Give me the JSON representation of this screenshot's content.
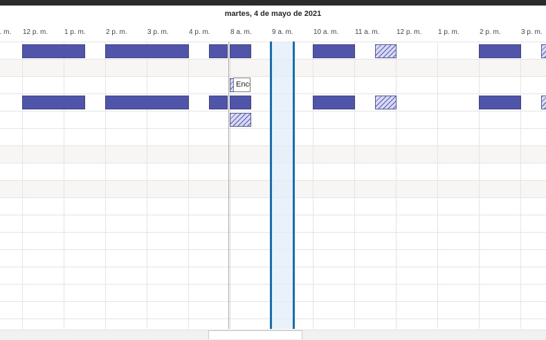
{
  "window": {
    "topbar_color": "#2b2b2b"
  },
  "header": {
    "date_title": "martes, 4 de mayo de 2021"
  },
  "hours": [
    {
      "label": "a. m."
    },
    {
      "label": "12 p. m."
    },
    {
      "label": "1 p. m."
    },
    {
      "label": "2 p. m."
    },
    {
      "label": "3 p. m."
    },
    {
      "label": "4 p. m."
    },
    {
      "label": "8 a. m."
    },
    {
      "label": "9 a. m."
    },
    {
      "label": "10 a. m."
    },
    {
      "label": "11 a. m."
    },
    {
      "label": "12 p. m."
    },
    {
      "label": "1 p. m."
    },
    {
      "label": "2 p. m."
    },
    {
      "label": "3 p. m."
    }
  ],
  "tooltip": {
    "text": "Enco"
  },
  "colors": {
    "busy": "#5055a9",
    "selection_border": "#106ebe",
    "alt_row": "#f7f6f5"
  }
}
